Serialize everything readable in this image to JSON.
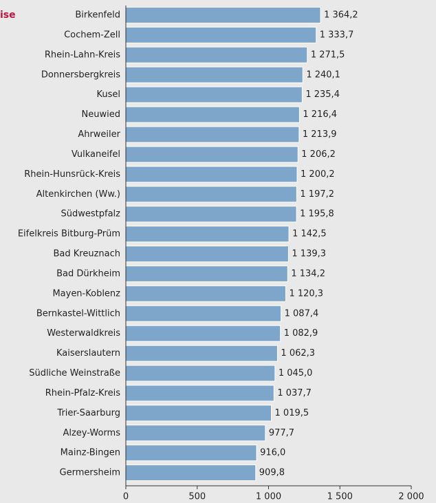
{
  "chart_data": {
    "type": "bar",
    "orientation": "horizontal",
    "title": "ise",
    "categories": [
      "Birkenfeld",
      "Cochem-Zell",
      "Rhein-Lahn-Kreis",
      "Donnersbergkreis",
      "Kusel",
      "Neuwied",
      "Ahrweiler",
      "Vulkaneifel",
      "Rhein-Hunsrück-Kreis",
      "Altenkirchen (Ww.)",
      "Südwestpfalz",
      "Eifelkreis Bitburg-Prüm",
      "Bad Kreuznach",
      "Bad Dürkheim",
      "Mayen-Koblenz",
      "Bernkastel-Wittlich",
      "Westerwaldkreis",
      "Kaiserslautern",
      "Südliche Weinstraße",
      "Rhein-Pfalz-Kreis",
      "Trier-Saarburg",
      "Alzey-Worms",
      "Mainz-Bingen",
      "Germersheim"
    ],
    "values": [
      1364.2,
      1333.7,
      1271.5,
      1240.1,
      1235.4,
      1216.4,
      1213.9,
      1206.2,
      1200.2,
      1197.2,
      1195.8,
      1142.5,
      1139.3,
      1134.2,
      1120.3,
      1087.4,
      1082.9,
      1062.3,
      1045.0,
      1037.7,
      1019.5,
      977.7,
      916.0,
      909.8
    ],
    "value_labels": [
      "1 364,2",
      "1 333,7",
      "1 271,5",
      "1 240,1",
      "1 235,4",
      "1 216,4",
      "1 213,9",
      "1 206,2",
      "1 200,2",
      "1 197,2",
      "1 195,8",
      "1 142,5",
      "1 139,3",
      "1 134,2",
      "1 120,3",
      "1 087,4",
      "1 082,9",
      "1 062,3",
      "1 045,0",
      "1 037,7",
      "1 019,5",
      "977,7",
      "916,0",
      "909,8"
    ],
    "color": "#7ea6cb",
    "xlim": [
      0,
      2000
    ],
    "xticks": [
      0,
      500,
      {
        "value": 1000,
        "label": "1 000"
      },
      {
        "value": 1500,
        "label": "1 500"
      },
      {
        "value": 2000,
        "label": "2 000"
      }
    ]
  }
}
